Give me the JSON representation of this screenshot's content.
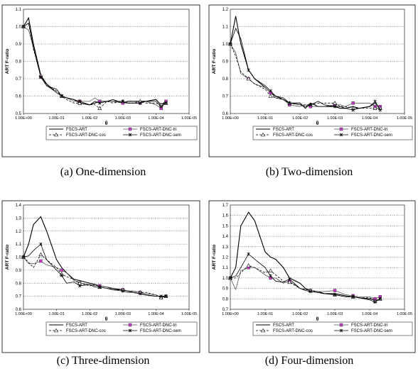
{
  "x_axis_label": "θ",
  "y_axis_label": "ART F-ratio",
  "x_ticks": [
    "1.00E+00",
    "1.00E-01",
    "1.00E-02",
    "1.00E-03",
    "1.00E-04",
    "1.00E-05"
  ],
  "series_names": [
    "FSCS-ART",
    "FSCS-ART-DNC-tri",
    "FSCS-ART-DNC-cos",
    "FSCS-ART-DNC-sem"
  ],
  "captions": [
    "(a)  One-dimension",
    "(b)  Two-dimension",
    "(c)  Three-dimension",
    "(d)  Four-dimension"
  ],
  "chart_data": [
    {
      "type": "line",
      "xscale": "log",
      "xlabel": "θ",
      "ylabel": "ART F-ratio",
      "ylim": [
        0.5,
        1.1
      ],
      "x": [
        1,
        0.7,
        0.5,
        0.3,
        0.2,
        0.1,
        0.07,
        0.05,
        0.03,
        0.02,
        0.01,
        0.007,
        0.005,
        0.003,
        0.002,
        0.001,
        0.0007,
        0.0005,
        0.0003,
        0.0002,
        0.0001,
        7e-05,
        5e-05
      ],
      "series": [
        {
          "name": "FSCS-ART",
          "values": [
            1,
            1.05,
            0.9,
            0.72,
            0.67,
            0.62,
            0.6,
            0.59,
            0.58,
            0.56,
            0.55,
            0.56,
            0.57,
            0.57,
            0.58,
            0.56,
            0.57,
            0.57,
            0.57,
            0.57,
            0.58,
            0.55,
            0.57
          ]
        },
        {
          "name": "FSCS-ART-DNC-tri",
          "values": [
            1,
            0.98,
            0.88,
            0.71,
            0.66,
            0.62,
            0.6,
            0.59,
            0.57,
            0.57,
            0.57,
            0.59,
            0.57,
            0.57,
            0.57,
            0.56,
            0.56,
            0.56,
            0.56,
            0.57,
            0.55,
            0.53,
            0.57
          ]
        },
        {
          "name": "FSCS-ART-DNC-cos",
          "values": [
            1,
            1.02,
            0.87,
            0.72,
            0.66,
            0.63,
            0.6,
            0.58,
            0.56,
            0.56,
            0.55,
            0.55,
            0.53,
            0.57,
            0.56,
            0.57,
            0.56,
            0.56,
            0.57,
            0.56,
            0.56,
            0.55,
            0.56
          ]
        },
        {
          "name": "FSCS-ART-DNC-sem",
          "values": [
            1,
            1.02,
            0.88,
            0.71,
            0.66,
            0.64,
            0.6,
            0.59,
            0.58,
            0.57,
            0.55,
            0.57,
            0.56,
            0.57,
            0.57,
            0.57,
            0.56,
            0.56,
            0.56,
            0.57,
            0.57,
            0.54,
            0.56
          ]
        }
      ]
    },
    {
      "type": "line",
      "xscale": "log",
      "xlabel": "θ",
      "ylabel": "ART F-ratio",
      "ylim": [
        0.6,
        1.2
      ],
      "x": [
        1,
        0.7,
        0.5,
        0.3,
        0.2,
        0.1,
        0.07,
        0.05,
        0.03,
        0.02,
        0.01,
        0.007,
        0.005,
        0.003,
        0.002,
        0.001,
        0.0007,
        0.0005,
        0.0003,
        0.0002,
        0.0001,
        7e-05,
        5e-05
      ],
      "series": [
        {
          "name": "FSCS-ART",
          "values": [
            1,
            1.16,
            1.0,
            0.85,
            0.8,
            0.75,
            0.72,
            0.7,
            0.68,
            0.66,
            0.66,
            0.63,
            0.66,
            0.64,
            0.64,
            0.64,
            0.63,
            0.63,
            0.64,
            0.63,
            0.64,
            0.66,
            0.63
          ]
        },
        {
          "name": "FSCS-ART-DNC-tri",
          "values": [
            1,
            0.95,
            0.83,
            0.8,
            0.77,
            0.75,
            0.72,
            0.69,
            0.68,
            0.65,
            0.64,
            0.65,
            0.64,
            0.64,
            0.64,
            0.65,
            0.65,
            0.64,
            0.66,
            0.66,
            0.66,
            0.64,
            0.64
          ]
        },
        {
          "name": "FSCS-ART-DNC-cos",
          "values": [
            1,
            0.93,
            0.84,
            0.8,
            0.77,
            0.74,
            0.7,
            0.69,
            0.68,
            0.66,
            0.65,
            0.65,
            0.65,
            0.66,
            0.66,
            0.66,
            0.64,
            0.64,
            0.63,
            0.63,
            0.63,
            0.63,
            0.63
          ]
        },
        {
          "name": "FSCS-ART-DNC-sem",
          "values": [
            1,
            1.09,
            1.03,
            0.85,
            0.8,
            0.76,
            0.73,
            0.7,
            0.69,
            0.66,
            0.65,
            0.64,
            0.65,
            0.67,
            0.65,
            0.64,
            0.64,
            0.63,
            0.62,
            0.63,
            0.64,
            0.67,
            0.62
          ]
        }
      ]
    },
    {
      "type": "line",
      "xscale": "log",
      "xlabel": "θ",
      "ylabel": "ART F-ratio",
      "ylim": [
        0.6,
        1.4
      ],
      "x": [
        1,
        0.7,
        0.5,
        0.3,
        0.2,
        0.1,
        0.07,
        0.05,
        0.03,
        0.02,
        0.01,
        0.007,
        0.005,
        0.003,
        0.002,
        0.001,
        0.0007,
        0.0005,
        0.0003,
        0.0002,
        0.0001,
        7e-05,
        5e-05
      ],
      "series": [
        {
          "name": "FSCS-ART",
          "values": [
            1,
            1.1,
            1.25,
            1.31,
            1.2,
            0.98,
            0.92,
            0.88,
            0.83,
            0.82,
            0.8,
            0.79,
            0.78,
            0.77,
            0.76,
            0.75,
            0.74,
            0.73,
            0.72,
            0.71,
            0.7,
            0.7,
            0.7
          ]
        },
        {
          "name": "FSCS-ART-DNC-tri",
          "values": [
            1,
            0.95,
            0.95,
            0.97,
            0.94,
            0.92,
            0.9,
            0.88,
            0.82,
            0.8,
            0.79,
            0.78,
            0.78,
            0.77,
            0.75,
            0.75,
            0.74,
            0.74,
            0.73,
            0.72,
            0.71,
            0.69,
            0.7
          ]
        },
        {
          "name": "FSCS-ART-DNC-cos",
          "values": [
            1,
            0.96,
            0.92,
            1.02,
            0.98,
            0.92,
            0.87,
            0.85,
            0.83,
            0.8,
            0.78,
            0.79,
            0.77,
            0.76,
            0.75,
            0.75,
            0.74,
            0.74,
            0.73,
            0.73,
            0.71,
            0.69,
            0.7
          ]
        },
        {
          "name": "FSCS-ART-DNC-sem",
          "values": [
            1,
            1.01,
            1.05,
            1.1,
            0.98,
            0.9,
            0.86,
            0.8,
            0.81,
            0.78,
            0.79,
            0.77,
            0.77,
            0.76,
            0.75,
            0.74,
            0.73,
            0.73,
            0.72,
            0.71,
            0.7,
            0.7,
            0.7
          ]
        }
      ]
    },
    {
      "type": "line",
      "xscale": "log",
      "xlabel": "θ",
      "ylabel": "ART F-ratio",
      "ylim": [
        0.7,
        1.7
      ],
      "x": [
        1,
        0.7,
        0.5,
        0.3,
        0.2,
        0.1,
        0.07,
        0.05,
        0.03,
        0.02,
        0.01,
        0.007,
        0.005,
        0.003,
        0.002,
        0.001,
        0.0007,
        0.0005,
        0.0003,
        0.0002,
        0.0001,
        7e-05,
        5e-05
      ],
      "series": [
        {
          "name": "FSCS-ART",
          "values": [
            1,
            1.1,
            1.5,
            1.63,
            1.55,
            1.25,
            1.2,
            1.18,
            1.1,
            1.0,
            0.95,
            0.9,
            0.88,
            0.87,
            0.85,
            0.85,
            0.84,
            0.83,
            0.82,
            0.81,
            0.8,
            0.79,
            0.79
          ]
        },
        {
          "name": "FSCS-ART-DNC-tri",
          "values": [
            1,
            0.89,
            1.07,
            1.1,
            1.1,
            1.03,
            1.0,
            1.0,
            0.95,
            0.97,
            0.9,
            0.89,
            0.88,
            0.87,
            0.87,
            0.88,
            0.86,
            0.84,
            0.83,
            0.82,
            0.82,
            0.8,
            0.82
          ]
        },
        {
          "name": "FSCS-ART-DNC-cos",
          "values": [
            1,
            1.0,
            1.05,
            1.12,
            1.1,
            1.05,
            1.07,
            1.03,
            0.97,
            0.96,
            0.9,
            0.89,
            0.88,
            0.86,
            0.85,
            0.84,
            0.83,
            0.82,
            0.82,
            0.81,
            0.81,
            0.78,
            0.8
          ]
        },
        {
          "name": "FSCS-ART-DNC-sem",
          "values": [
            1,
            1.02,
            1.1,
            1.23,
            1.18,
            1.1,
            1.02,
            0.97,
            0.96,
            0.99,
            0.9,
            0.88,
            0.87,
            0.86,
            0.85,
            0.84,
            0.83,
            0.82,
            0.82,
            0.81,
            0.79,
            0.77,
            0.8
          ]
        }
      ]
    }
  ]
}
